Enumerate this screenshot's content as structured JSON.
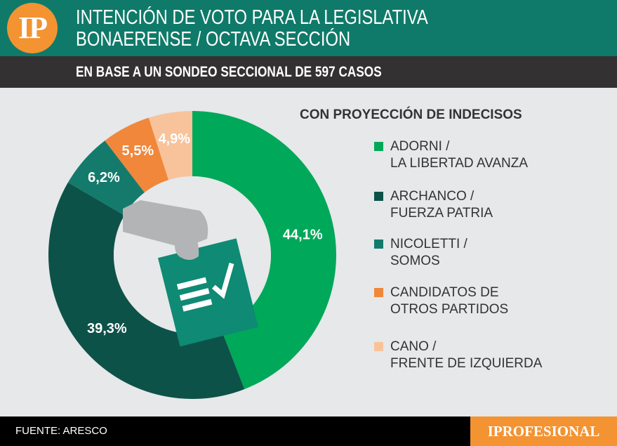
{
  "header": {
    "logo": "IP",
    "title_line1": "INTENCIÓN DE VOTO PARA LA LEGISLATIVA",
    "title_line2": "BONAERENSE / OCTAVA SECCIÓN",
    "subtitle": "EN BASE A UN SONDEO SECCIONAL DE 597 CASOS"
  },
  "footer": {
    "source": "FUENTE: ARESCO",
    "brand": "IPROFESIONAL"
  },
  "chart_data": {
    "type": "pie",
    "donut": true,
    "legend_title": "CON PROYECCIÓN DE INDECISOS",
    "legend_placement": "right",
    "slices": [
      {
        "name": "ADORNI /\nLA LIBERTAD AVANZA",
        "value": 44.1,
        "label": "44,1%",
        "color": "#00a859"
      },
      {
        "name": "ARCHANCO /\nFUERZA PATRIA",
        "value": 39.3,
        "label": "39,3%",
        "color": "#0d5248"
      },
      {
        "name": "NICOLETTI /\nSOMOS",
        "value": 6.2,
        "label": "6,2%",
        "color": "#147a6c"
      },
      {
        "name": "CANDIDATOS DE\nOTROS PARTIDOS",
        "value": 5.5,
        "label": "5,5%",
        "color": "#f0873a"
      },
      {
        "name": "CANO /\nFRENTE DE IZQUIERDA",
        "value": 4.9,
        "label": "4,9%",
        "color": "#f8c39b"
      }
    ]
  }
}
